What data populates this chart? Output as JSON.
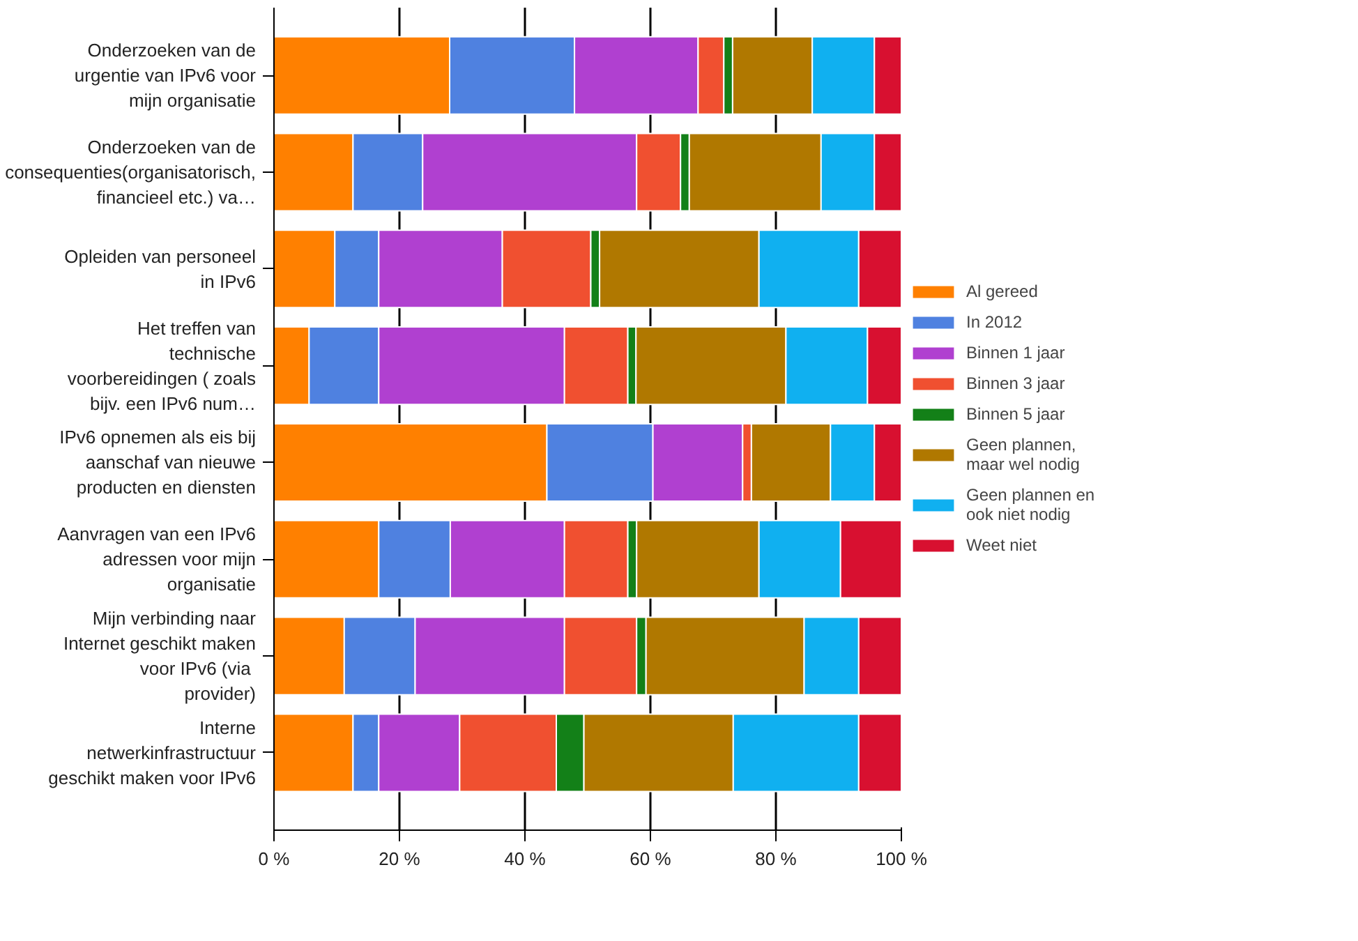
{
  "chart_data": {
    "type": "bar",
    "orientation": "horizontal",
    "stacked": true,
    "categories": [
      "Onderzoeken van de urgentie van IPv6 voor mijn organisatie",
      "Onderzoeken van de consequenties(organisatorisch, financieel etc.) va…",
      "Opleiden van personeel in IPv6",
      "Het treffen van technische voorbereidingen ( zoals bijv. een IPv6 num…",
      "IPv6 opnemen als eis bij aanschaf van nieuwe producten en diensten",
      "Aanvragen van een IPv6 adressen voor mijn organisatie",
      "Mijn verbinding naar Internet geschikt maken voor IPv6  (via provider)",
      "Interne netwerkinfrastructuur geschikt maken voor IPv6"
    ],
    "series": [
      {
        "name": "Al gereed",
        "color": "#ff8000",
        "values": [
          28,
          12.6,
          9.7,
          5.6,
          43.5,
          16.7,
          11.2,
          12.6
        ]
      },
      {
        "name": "In 2012",
        "color": "#4f81e0",
        "values": [
          19.9,
          11.1,
          7,
          11.1,
          16.9,
          11.4,
          11.3,
          4.1
        ]
      },
      {
        "name": "Binnen 1 jaar",
        "color": "#b040d0",
        "values": [
          19.7,
          34.1,
          19.7,
          29.6,
          14.3,
          18.2,
          23.8,
          12.9
        ]
      },
      {
        "name": "Binnen 3 jaar",
        "color": "#f05030",
        "values": [
          4.1,
          7,
          14.1,
          10.1,
          1.4,
          10.1,
          11.5,
          15.4
        ]
      },
      {
        "name": "Binnen 5 jaar",
        "color": "#138018",
        "values": [
          1.4,
          1.4,
          1.4,
          1.3,
          0,
          1.4,
          1.5,
          4.4
        ]
      },
      {
        "name": "Geen plannen, maar wel nodig",
        "color": "#b07800",
        "values": [
          12.7,
          21,
          25.4,
          23.9,
          12.6,
          19.5,
          25.2,
          23.8
        ]
      },
      {
        "name": "Geen plannen en ook niet nodig",
        "color": "#10b0f0",
        "values": [
          9.9,
          8.5,
          15.9,
          13,
          7,
          13,
          8.7,
          20
        ]
      },
      {
        "name": "Weet niet",
        "color": "#d81030",
        "values": [
          4.3,
          4.3,
          6.8,
          5.4,
          4.3,
          9.7,
          6.8,
          6.8
        ]
      }
    ],
    "xlim": [
      0,
      100
    ],
    "xticks": [
      {
        "value": 0,
        "label": "0 %"
      },
      {
        "value": 20,
        "label": "20 %"
      },
      {
        "value": 40,
        "label": "40 %"
      },
      {
        "value": 60,
        "label": "60 %"
      },
      {
        "value": 80,
        "label": "80 %"
      },
      {
        "value": 100,
        "label": "100 %"
      }
    ],
    "grid": "x",
    "legend": "right"
  }
}
